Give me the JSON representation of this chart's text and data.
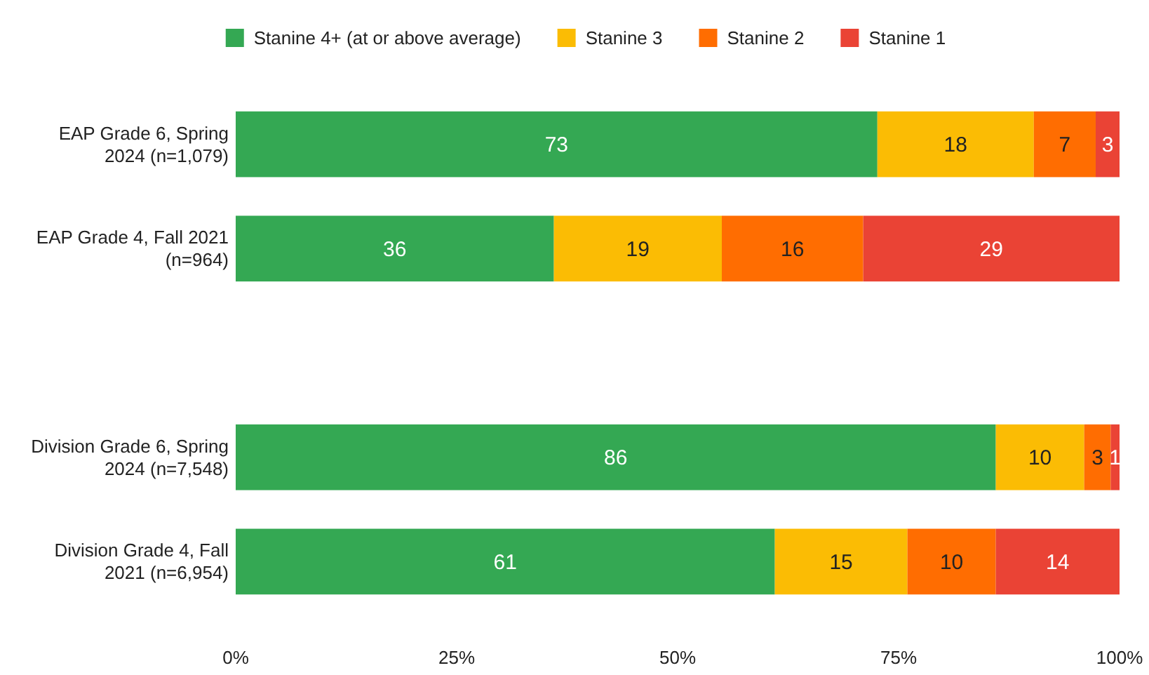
{
  "chart_data": {
    "type": "bar",
    "orientation": "horizontal",
    "stacked": true,
    "categories": [
      "EAP Grade 6, Spring 2024 (n=1,079)",
      "EAP Grade 4, Fall 2021 (n=964)",
      null,
      "Division Grade 6, Spring 2024 (n=7,548)",
      "Division Grade 4, Fall 2021 (n=6,954)"
    ],
    "series": [
      {
        "name": "Stanine 4+ (at or above average)",
        "color": "#34a853",
        "values": [
          72.6,
          36,
          null,
          86,
          61
        ],
        "value_labels": [
          "73",
          "36",
          null,
          "86",
          "61"
        ]
      },
      {
        "name": "Stanine 3",
        "color": "#fbbc04",
        "values": [
          17.7,
          19,
          null,
          10,
          15
        ],
        "value_labels": [
          "18",
          "19",
          null,
          "10",
          "15"
        ]
      },
      {
        "name": "Stanine 2",
        "color": "#ff6d01",
        "values": [
          7.0,
          16,
          null,
          3,
          10
        ],
        "value_labels": [
          "7",
          "16",
          null,
          "3",
          "10"
        ]
      },
      {
        "name": "Stanine 1",
        "color": "#ea4335",
        "values": [
          2.7,
          29,
          null,
          1,
          14
        ],
        "value_labels": [
          "3",
          "29",
          null,
          "1",
          "14"
        ]
      }
    ],
    "xlim": [
      0,
      100
    ],
    "xticks": [
      {
        "value": 0,
        "label": "0%"
      },
      {
        "value": 25,
        "label": "25%"
      },
      {
        "value": 50,
        "label": "50%"
      },
      {
        "value": 75,
        "label": "75%"
      },
      {
        "value": 100,
        "label": "100%"
      }
    ],
    "grid": false,
    "legend": "top"
  }
}
